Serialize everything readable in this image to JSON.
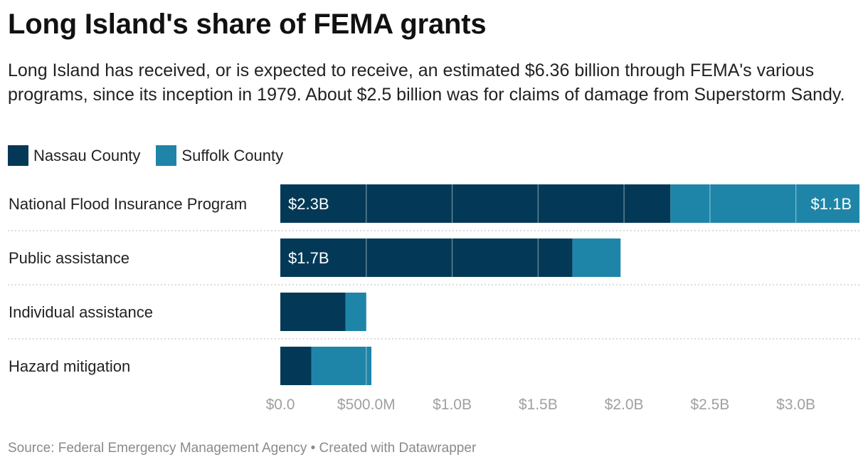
{
  "header": {
    "title": "Long Island's share of FEMA grants",
    "subtitle": "Long Island has received, or is expected to receive, an estimated $6.36 billion through FEMA's various programs, since its inception in 1979. About $2.5 billion was for claims of damage from Superstorm Sandy."
  },
  "legend": [
    {
      "label": "Nassau County",
      "color": "#033957"
    },
    {
      "label": "Suffolk County",
      "color": "#1f85a8"
    }
  ],
  "chart_data": {
    "type": "bar",
    "orientation": "horizontal",
    "stacked": true,
    "categories": [
      "National Flood Insurance Program",
      "Public assistance",
      "Individual assistance",
      "Hazard mitigation"
    ],
    "series": [
      {
        "name": "Nassau County",
        "color": "#033957",
        "values": [
          2.27,
          1.7,
          0.38,
          0.18
        ],
        "labels": [
          "$2.3B",
          "$1.7B",
          "",
          ""
        ]
      },
      {
        "name": "Suffolk County",
        "color": "#1f85a8",
        "values": [
          1.1,
          0.28,
          0.12,
          0.35
        ],
        "labels": [
          "$1.1B",
          "",
          "",
          ""
        ]
      }
    ],
    "xlim": [
      0,
      3.37
    ],
    "xticks": [
      0,
      0.5,
      1.0,
      1.5,
      2.0,
      2.5,
      3.0
    ],
    "xtick_labels": [
      "$0.0",
      "$500.0M",
      "$1.0B",
      "$1.5B",
      "$2.0B",
      "$2.5B",
      "$3.0B"
    ],
    "xlabel": "",
    "ylabel": "",
    "units": "billions of dollars"
  },
  "footer": {
    "source": "Source: Federal Emergency Management Agency • Created with Datawrapper"
  }
}
